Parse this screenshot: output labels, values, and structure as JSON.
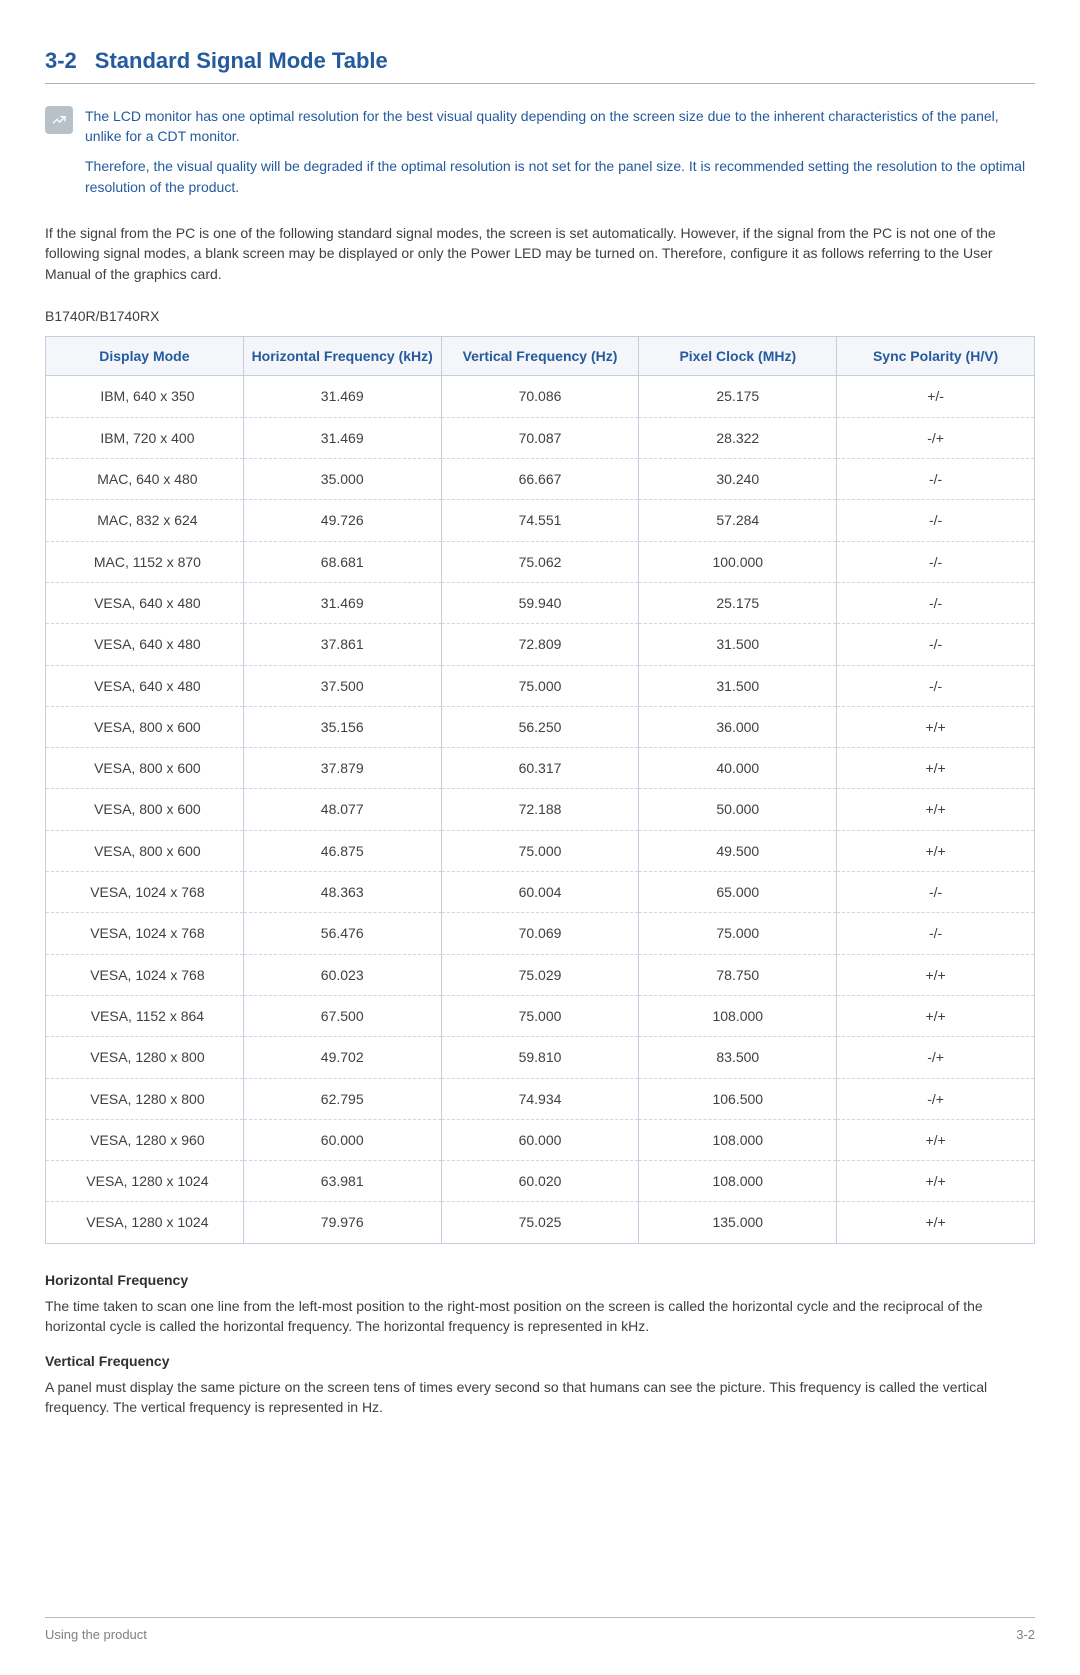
{
  "section": {
    "number": "3-2",
    "title": "Standard Signal Mode Table"
  },
  "note": {
    "p1": "The LCD monitor has one optimal resolution for the best visual quality depending on the screen size due to the inherent characteristics of the panel, unlike for a CDT monitor.",
    "p2": "Therefore, the visual quality will be degraded if the optimal resolution is not set for the panel size. It is recommended setting the resolution to the optimal resolution of the product."
  },
  "intro": "If the signal from the PC is one of the following standard signal modes, the screen is set automatically. However, if the signal from the PC is not one of the following signal modes, a blank screen may be displayed or only the Power LED may be turned on. Therefore, configure it as follows referring to the User Manual of the graphics card.",
  "model": "B1740R/B1740RX",
  "table": {
    "columns": [
      "Display Mode",
      "Horizontal Frequency (kHz)",
      "Vertical Frequency (Hz)",
      "Pixel Clock (MHz)",
      "Sync Polarity (H/V)"
    ],
    "rows": [
      [
        "IBM, 640 x 350",
        "31.469",
        "70.086",
        "25.175",
        "+/-"
      ],
      [
        "IBM, 720 x 400",
        "31.469",
        "70.087",
        "28.322",
        "-/+"
      ],
      [
        "MAC, 640 x 480",
        "35.000",
        "66.667",
        "30.240",
        "-/-"
      ],
      [
        "MAC, 832 x 624",
        "49.726",
        "74.551",
        "57.284",
        "-/-"
      ],
      [
        "MAC, 1152 x 870",
        "68.681",
        "75.062",
        "100.000",
        "-/-"
      ],
      [
        "VESA, 640 x 480",
        "31.469",
        "59.940",
        "25.175",
        "-/-"
      ],
      [
        "VESA, 640 x 480",
        "37.861",
        "72.809",
        "31.500",
        "-/-"
      ],
      [
        "VESA, 640 x 480",
        "37.500",
        "75.000",
        "31.500",
        "-/-"
      ],
      [
        "VESA, 800 x 600",
        "35.156",
        "56.250",
        "36.000",
        "+/+"
      ],
      [
        "VESA, 800 x 600",
        "37.879",
        "60.317",
        "40.000",
        "+/+"
      ],
      [
        "VESA, 800 x 600",
        "48.077",
        "72.188",
        "50.000",
        "+/+"
      ],
      [
        "VESA, 800 x 600",
        "46.875",
        "75.000",
        "49.500",
        "+/+"
      ],
      [
        "VESA, 1024 x 768",
        "48.363",
        "60.004",
        "65.000",
        "-/-"
      ],
      [
        "VESA, 1024 x 768",
        "56.476",
        "70.069",
        "75.000",
        "-/-"
      ],
      [
        "VESA, 1024 x 768",
        "60.023",
        "75.029",
        "78.750",
        "+/+"
      ],
      [
        "VESA, 1152 x 864",
        "67.500",
        "75.000",
        "108.000",
        "+/+"
      ],
      [
        "VESA, 1280 x 800",
        "49.702",
        "59.810",
        "83.500",
        "-/+"
      ],
      [
        "VESA, 1280 x 800",
        "62.795",
        "74.934",
        "106.500",
        "-/+"
      ],
      [
        "VESA, 1280 x 960",
        "60.000",
        "60.000",
        "108.000",
        "+/+"
      ],
      [
        "VESA, 1280 x 1024",
        "63.981",
        "60.020",
        "108.000",
        "+/+"
      ],
      [
        "VESA, 1280 x 1024",
        "79.976",
        "75.025",
        "135.000",
        "+/+"
      ]
    ],
    "header_bg": "#f4f6f9",
    "header_text_color": "#245a9e",
    "border_color": "#c4cedc",
    "row_divider_color": "#cfd6e0",
    "cell_text_color": "#404040",
    "fontsize": 14
  },
  "definitions": {
    "h1": "Horizontal Frequency",
    "p1": "The time taken to scan one line from the left-most position to the right-most position on the screen is called the horizontal cycle and the reciprocal of the horizontal cycle is called the horizontal frequency. The horizontal frequency is represented in kHz.",
    "h2": "Vertical Frequency",
    "p2": "A panel must display the same picture on the screen tens of times every second so that humans can see the picture. This frequency is called the vertical frequency. The vertical frequency is represented in Hz."
  },
  "footer": {
    "left": "Using the product",
    "right": "3-2"
  },
  "colors": {
    "accent": "#245a9e",
    "body_text": "#404040",
    "muted": "#808080",
    "note_icon_bg": "#b8c0c8",
    "page_bg": "#ffffff",
    "rule": "#b0b0b0"
  }
}
